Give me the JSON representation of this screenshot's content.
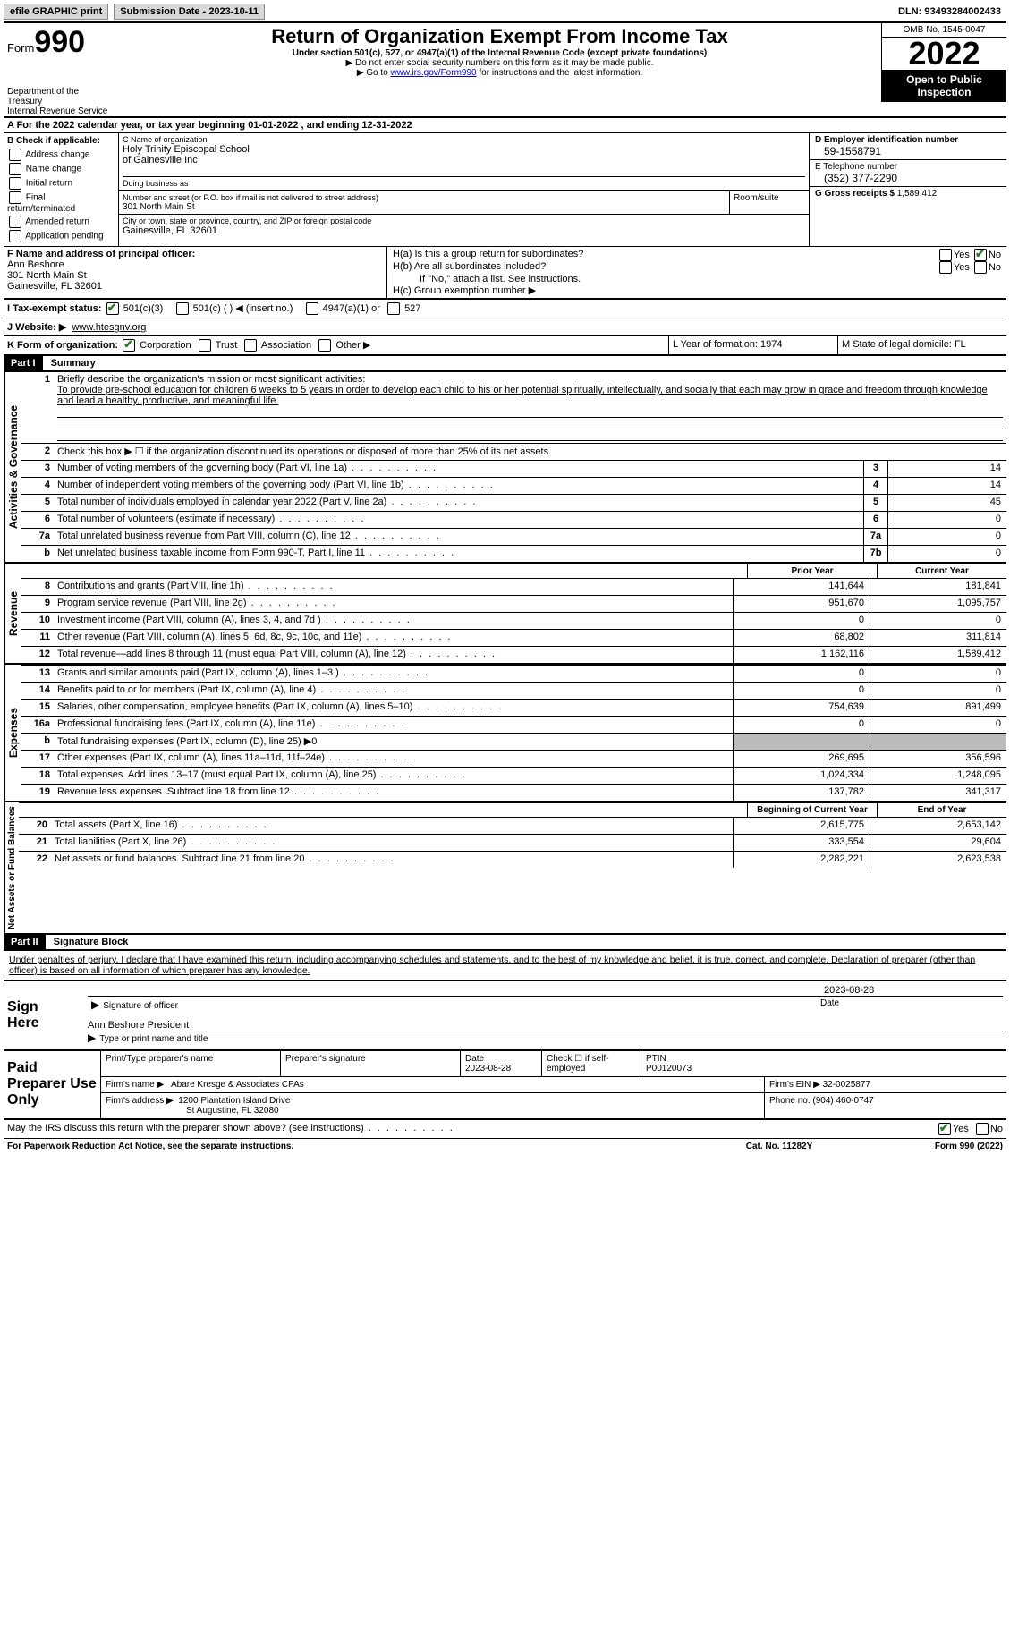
{
  "topbar": {
    "efile_link": "efile GRAPHIC print",
    "submission": "Submission Date - 2023-10-11",
    "dln": "DLN: 93493284002433"
  },
  "header": {
    "form_word": "Form",
    "form_num": "990",
    "dept": "Department of the Treasury\nInternal Revenue Service",
    "title": "Return of Organization Exempt From Income Tax",
    "subtitle": "Under section 501(c), 527, or 4947(a)(1) of the Internal Revenue Code (except private foundations)",
    "note1": "▶ Do not enter social security numbers on this form as it may be made public.",
    "note2_pre": "▶ Go to ",
    "note2_link": "www.irs.gov/Form990",
    "note2_post": " for instructions and the latest information.",
    "omb": "OMB No. 1545-0047",
    "year": "2022",
    "open": "Open to Public Inspection"
  },
  "header_a": "A For the 2022 calendar year, or tax year beginning 01-01-2022    , and ending 12-31-2022",
  "section_b": {
    "label": "B Check if applicable:",
    "items": [
      "Address change",
      "Name change",
      "Initial return",
      "Final return/terminated",
      "Amended return",
      "Application pending"
    ]
  },
  "section_c": {
    "label_name": "C Name of organization",
    "org1": "Holy Trinity Episcopal School",
    "org2": "of Gainesville Inc",
    "dba_label": "Doing business as",
    "street_label": "Number and street (or P.O. box if mail is not delivered to street address)",
    "street": "301 North Main St",
    "room_label": "Room/suite",
    "city_label": "City or town, state or province, country, and ZIP or foreign postal code",
    "city": "Gainesville, FL  32601"
  },
  "section_d": {
    "ein_label": "D Employer identification number",
    "ein": "59-1558791",
    "phone_label": "E Telephone number",
    "phone": "(352) 377-2290",
    "gross_label": "G Gross receipts $",
    "gross": "1,589,412"
  },
  "section_f": {
    "label": "F Name and address of principal officer:",
    "name": "Ann Beshore",
    "addr1": "301 North Main St",
    "addr2": "Gainesville, FL  32601"
  },
  "section_h": {
    "ha": "H(a)  Is this a group return for subordinates?",
    "hb": "H(b)  Are all subordinates included?",
    "hb_note": "If \"No,\" attach a list. See instructions.",
    "hc": "H(c)  Group exemption number ▶",
    "yes": "Yes",
    "no": "No"
  },
  "row_i": {
    "label": "I  Tax-exempt status:",
    "opt1": "501(c)(3)",
    "opt2": "501(c) (  ) ◀ (insert no.)",
    "opt3": "4947(a)(1) or",
    "opt4": "527"
  },
  "row_j": {
    "label": "J  Website: ▶",
    "val": "www.htesgnv.org"
  },
  "row_k": {
    "label": "K Form of organization:",
    "opt1": "Corporation",
    "opt2": "Trust",
    "opt3": "Association",
    "opt4": "Other ▶",
    "l": "L Year of formation: 1974",
    "m": "M State of legal domicile: FL"
  },
  "part1": {
    "heading": "Part I",
    "title": "Summary"
  },
  "tabs": {
    "act": "Activities & Governance",
    "rev": "Revenue",
    "exp": "Expenses",
    "net": "Net Assets or Fund Balances"
  },
  "line1": {
    "n": "1",
    "label": "Briefly describe the organization's mission or most significant activities:",
    "text": "To provide pre-school education for children 6 weeks to 5 years in order to develop each child to his or her potential spiritually, intellectually, and socially that each may grow in grace and freedom through knowledge and lead a healthy, productive, and meaningful life."
  },
  "lines_simple": [
    {
      "n": "2",
      "text": "Check this box ▶ ☐ if the organization discontinued its operations or disposed of more than 25% of its net assets."
    },
    {
      "n": "3",
      "text": "Number of voting members of the governing body (Part VI, line 1a)",
      "box": "3",
      "val": "14"
    },
    {
      "n": "4",
      "text": "Number of independent voting members of the governing body (Part VI, line 1b)",
      "box": "4",
      "val": "14"
    },
    {
      "n": "5",
      "text": "Total number of individuals employed in calendar year 2022 (Part V, line 2a)",
      "box": "5",
      "val": "45"
    },
    {
      "n": "6",
      "text": "Total number of volunteers (estimate if necessary)",
      "box": "6",
      "val": "0"
    },
    {
      "n": "7a",
      "text": "Total unrelated business revenue from Part VIII, column (C), line 12",
      "box": "7a",
      "val": "0"
    },
    {
      "n": "b",
      "text": "Net unrelated business taxable income from Form 990-T, Part I, line 11",
      "box": "7b",
      "val": "0"
    }
  ],
  "col_headers": {
    "prior": "Prior Year",
    "current": "Current Year"
  },
  "revenue_lines": [
    {
      "n": "8",
      "text": "Contributions and grants (Part VIII, line 1h)",
      "p": "141,644",
      "c": "181,841"
    },
    {
      "n": "9",
      "text": "Program service revenue (Part VIII, line 2g)",
      "p": "951,670",
      "c": "1,095,757"
    },
    {
      "n": "10",
      "text": "Investment income (Part VIII, column (A), lines 3, 4, and 7d )",
      "p": "0",
      "c": "0"
    },
    {
      "n": "11",
      "text": "Other revenue (Part VIII, column (A), lines 5, 6d, 8c, 9c, 10c, and 11e)",
      "p": "68,802",
      "c": "311,814"
    },
    {
      "n": "12",
      "text": "Total revenue—add lines 8 through 11 (must equal Part VIII, column (A), line 12)",
      "p": "1,162,116",
      "c": "1,589,412"
    }
  ],
  "expense_lines": [
    {
      "n": "13",
      "text": "Grants and similar amounts paid (Part IX, column (A), lines 1–3 )",
      "p": "0",
      "c": "0"
    },
    {
      "n": "14",
      "text": "Benefits paid to or for members (Part IX, column (A), line 4)",
      "p": "0",
      "c": "0"
    },
    {
      "n": "15",
      "text": "Salaries, other compensation, employee benefits (Part IX, column (A), lines 5–10)",
      "p": "754,639",
      "c": "891,499"
    },
    {
      "n": "16a",
      "text": "Professional fundraising fees (Part IX, column (A), line 11e)",
      "p": "0",
      "c": "0"
    },
    {
      "n": "b",
      "text": "Total fundraising expenses (Part IX, column (D), line 25) ▶0",
      "shaded": true
    },
    {
      "n": "17",
      "text": "Other expenses (Part IX, column (A), lines 11a–11d, 11f–24e)",
      "p": "269,695",
      "c": "356,596"
    },
    {
      "n": "18",
      "text": "Total expenses. Add lines 13–17 (must equal Part IX, column (A), line 25)",
      "p": "1,024,334",
      "c": "1,248,095"
    },
    {
      "n": "19",
      "text": "Revenue less expenses. Subtract line 18 from line 12",
      "p": "137,782",
      "c": "341,317"
    }
  ],
  "net_headers": {
    "beg": "Beginning of Current Year",
    "end": "End of Year"
  },
  "net_lines": [
    {
      "n": "20",
      "text": "Total assets (Part X, line 16)",
      "p": "2,615,775",
      "c": "2,653,142"
    },
    {
      "n": "21",
      "text": "Total liabilities (Part X, line 26)",
      "p": "333,554",
      "c": "29,604"
    },
    {
      "n": "22",
      "text": "Net assets or fund balances. Subtract line 21 from line 20",
      "p": "2,282,221",
      "c": "2,623,538"
    }
  ],
  "part2": {
    "heading": "Part II",
    "title": "Signature Block"
  },
  "penalty": "Under penalties of perjury, I declare that I have examined this return, including accompanying schedules and statements, and to the best of my knowledge and belief, it is true, correct, and complete. Declaration of preparer (other than officer) is based on all information of which preparer has any knowledge.",
  "sign": {
    "label": "Sign Here",
    "date": "2023-08-28",
    "sig_label": "Signature of officer",
    "date_label": "Date",
    "name": "Ann Beshore  President",
    "name_label": "Type or print name and title"
  },
  "preparer": {
    "label": "Paid Preparer Use Only",
    "r1_c1": "Print/Type preparer's name",
    "r1_c2": "Preparer's signature",
    "r1_c3_label": "Date",
    "r1_c3": "2023-08-28",
    "r1_c4": "Check ☐ if self-employed",
    "r1_c5_label": "PTIN",
    "r1_c5": "P00120073",
    "r2_label": "Firm's name    ▶",
    "r2_val": "Abare Kresge & Associates CPAs",
    "r2_ein": "Firm's EIN ▶ 32-0025877",
    "r3_label": "Firm's address ▶",
    "r3_val1": "1200 Plantation Island Drive",
    "r3_val2": "St Augustine, FL  32080",
    "r3_phone": "Phone no. (904) 460-0747"
  },
  "discuss": {
    "text": "May the IRS discuss this return with the preparer shown above? (see instructions)",
    "yes": "Yes",
    "no": "No"
  },
  "footer": {
    "left": "For Paperwork Reduction Act Notice, see the separate instructions.",
    "mid": "Cat. No. 11282Y",
    "right": "Form 990 (2022)"
  }
}
